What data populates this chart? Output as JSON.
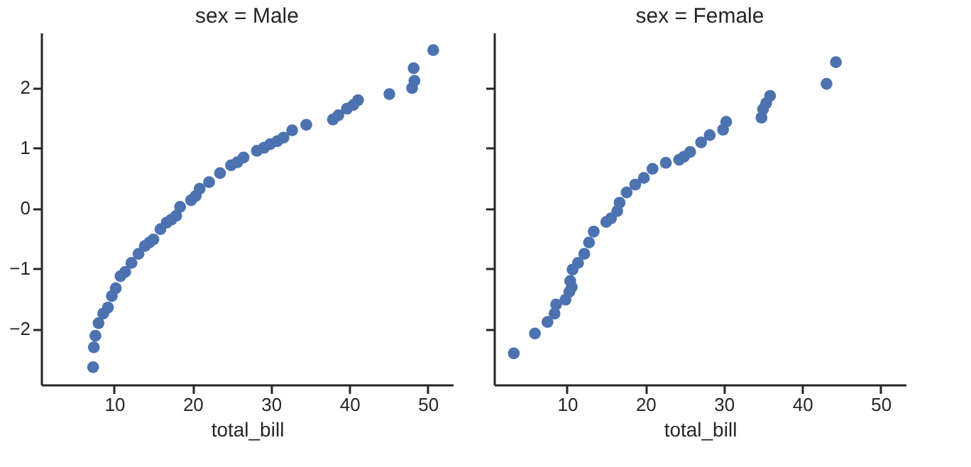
{
  "chart_data": [
    {
      "type": "scatter",
      "title": "sex = Male",
      "xlabel": "total_bill",
      "marker": "circle",
      "xlim": [
        0.68,
        53.2
      ],
      "xticks": [
        10,
        20,
        30,
        40,
        50
      ],
      "ylim": [
        -2.93,
        2.91
      ],
      "yticks": [
        -2,
        -1,
        0,
        1,
        2
      ],
      "x": [
        7.3,
        7.4,
        7.6,
        8.0,
        8.6,
        9.2,
        9.7,
        10.2,
        10.8,
        11.4,
        12.2,
        13.1,
        13.9,
        14.5,
        15.0,
        15.9,
        16.7,
        17.3,
        17.9,
        18.4,
        19.8,
        20.4,
        20.9,
        22.1,
        23.5,
        24.9,
        25.7,
        26.5,
        28.2,
        29.1,
        29.9,
        30.8,
        31.6,
        32.7,
        34.5,
        37.9,
        38.6,
        39.7,
        40.5,
        41.1,
        45.1,
        48.0,
        48.3,
        48.2,
        50.7
      ],
      "series": [
        {
          "color": "#4c72b0",
          "values": [
            -2.64,
            -2.31,
            -2.12,
            -1.91,
            -1.75,
            -1.65,
            -1.46,
            -1.33,
            -1.13,
            -1.06,
            -0.91,
            -0.76,
            -0.63,
            -0.57,
            -0.52,
            -0.35,
            -0.24,
            -0.19,
            -0.13,
            0.02,
            0.13,
            0.2,
            0.32,
            0.43,
            0.58,
            0.71,
            0.76,
            0.84,
            0.95,
            1.0,
            1.06,
            1.11,
            1.17,
            1.29,
            1.38,
            1.47,
            1.54,
            1.65,
            1.71,
            1.79,
            1.89,
            1.99,
            2.11,
            2.32,
            2.62
          ]
        }
      ]
    },
    {
      "type": "scatter",
      "title": "sex = Female",
      "xlabel": "total_bill",
      "marker": "circle",
      "tick_labels": "x",
      "xlim": [
        0.68,
        53.2
      ],
      "xticks": [
        10,
        20,
        30,
        40,
        50
      ],
      "ylim": [
        -2.93,
        2.91
      ],
      "yticks": [
        -2,
        -1,
        0,
        1,
        2
      ],
      "x": [
        3.2,
        5.9,
        7.5,
        8.4,
        8.6,
        9.8,
        10.3,
        10.6,
        10.4,
        10.7,
        11.4,
        12.2,
        12.8,
        13.4,
        15.0,
        15.6,
        16.4,
        16.7,
        17.6,
        18.7,
        19.8,
        20.9,
        22.6,
        24.3,
        24.9,
        25.7,
        27.1,
        28.2,
        29.9,
        30.3,
        34.8,
        35.0,
        35.4,
        35.9,
        43.1,
        44.3
      ],
      "series": [
        {
          "color": "#4c72b0",
          "values": [
            -2.41,
            -2.08,
            -1.89,
            -1.75,
            -1.6,
            -1.52,
            -1.39,
            -1.31,
            -1.21,
            -1.02,
            -0.91,
            -0.76,
            -0.57,
            -0.39,
            -0.23,
            -0.17,
            -0.05,
            0.09,
            0.26,
            0.39,
            0.5,
            0.65,
            0.75,
            0.8,
            0.85,
            0.93,
            1.09,
            1.21,
            1.3,
            1.43,
            1.5,
            1.64,
            1.74,
            1.86,
            2.06,
            2.42
          ]
        }
      ]
    }
  ]
}
